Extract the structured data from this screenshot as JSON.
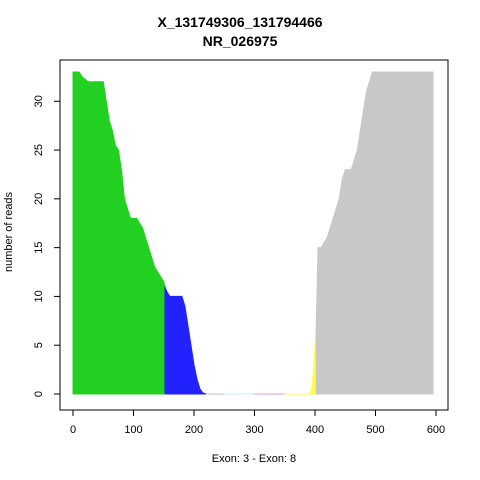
{
  "chart_data": {
    "type": "area",
    "title": "X_131749306_131794466",
    "subtitle": "NR_026975",
    "xlabel": "Exon: 3 - Exon: 8",
    "ylabel": "number of reads",
    "xlim": [
      -5,
      605
    ],
    "ylim": [
      0,
      33
    ],
    "xticks": [
      0,
      100,
      200,
      300,
      400,
      500,
      600
    ],
    "yticks": [
      0,
      5,
      10,
      15,
      20,
      25,
      30
    ],
    "grid": false,
    "segments": [
      {
        "color": "#22d022",
        "x": [
          0,
          10,
          15,
          25,
          45,
          50,
          55,
          60,
          65,
          70,
          75,
          80,
          85,
          90,
          95,
          100,
          105,
          110,
          115,
          120,
          125,
          130,
          135,
          140,
          145,
          150,
          152
        ],
        "y": [
          33,
          33,
          32.5,
          32,
          32,
          32,
          30,
          28,
          27,
          25.5,
          25,
          23,
          20,
          19,
          18,
          18,
          18,
          17.5,
          17,
          16,
          15,
          14,
          13,
          12.5,
          12,
          11.5,
          11
        ]
      },
      {
        "color": "#2222ff",
        "x": [
          152,
          155,
          160,
          175,
          180,
          185,
          190,
          195,
          200,
          205,
          210,
          215,
          220
        ],
        "y": [
          11,
          10.5,
          10,
          10,
          10,
          9,
          7,
          5,
          3,
          1.5,
          0.5,
          0.1,
          0
        ]
      },
      {
        "color": "#c0c0c0",
        "x": [
          220,
          250
        ],
        "y": [
          0,
          0
        ]
      },
      {
        "color": "#bbeeff",
        "x": [
          250,
          300
        ],
        "y": [
          0,
          0
        ]
      },
      {
        "color": "#dd99ee",
        "x": [
          300,
          350
        ],
        "y": [
          0,
          0
        ]
      },
      {
        "color": "#ffff44",
        "x": [
          350,
          390,
          395,
          398,
          400,
          402
        ],
        "y": [
          0,
          0,
          0.5,
          3,
          5,
          7
        ]
      },
      {
        "color": "#c8c8c8",
        "x": [
          402,
          405,
          410,
          415,
          420,
          425,
          430,
          435,
          440,
          445,
          450,
          455,
          460,
          465,
          470,
          475,
          480,
          485,
          490,
          495,
          500,
          505,
          510,
          515,
          520,
          525,
          530,
          535,
          540,
          545,
          550,
          555,
          560,
          565,
          570,
          575,
          580,
          585,
          590,
          595
        ],
        "y": [
          7,
          15,
          15,
          15.5,
          16,
          17,
          18,
          19,
          20,
          22,
          23,
          23,
          23,
          24,
          25,
          27,
          29,
          31,
          32,
          33,
          33,
          33,
          33,
          33,
          33,
          33,
          33,
          33,
          33,
          33,
          33,
          33,
          33,
          33,
          33,
          33,
          33,
          33,
          33,
          33
        ]
      }
    ]
  }
}
